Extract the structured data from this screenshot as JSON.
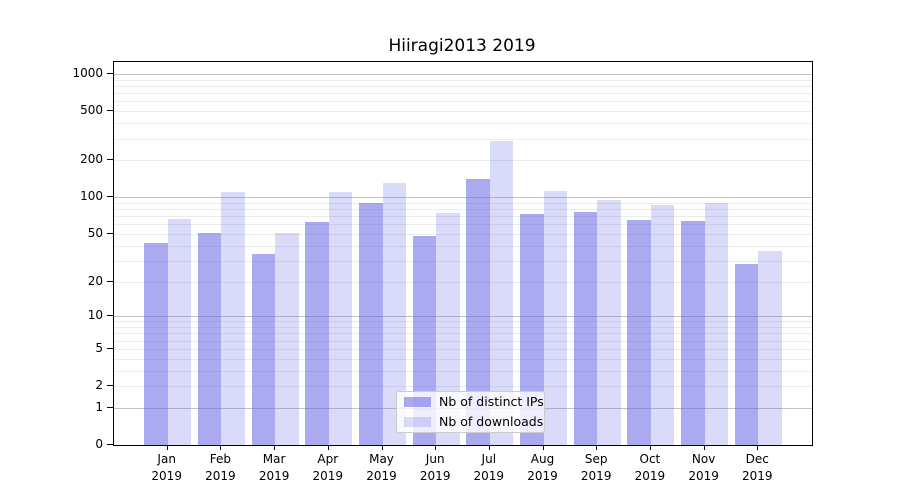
{
  "title": "Hiiragi2013 2019",
  "legend": {
    "items": [
      {
        "label": "Nb of distinct IPs",
        "color": "rgba(100,100,230,0.55)"
      },
      {
        "label": "Nb of downloads",
        "color": "rgba(100,100,230,0.24)"
      }
    ]
  },
  "chart_data": {
    "type": "bar",
    "title": "Hiiragi2013 2019",
    "categories": [
      "Jan 2019",
      "Feb 2019",
      "Mar 2019",
      "Apr 2019",
      "May 2019",
      "Jun 2019",
      "Jul 2019",
      "Aug 2019",
      "Sep 2019",
      "Oct 2019",
      "Nov 2019",
      "Dec 2019"
    ],
    "series": [
      {
        "name": "Nb of distinct IPs",
        "values": [
          42,
          51,
          34,
          63,
          90,
          48,
          140,
          73,
          76,
          65,
          64,
          28
        ]
      },
      {
        "name": "Nb of downloads",
        "values": [
          66,
          110,
          51,
          110,
          130,
          74,
          285,
          113,
          94,
          86,
          90,
          36
        ]
      }
    ],
    "xlabel": "",
    "ylabel": "",
    "y_scale": "log(value+1)",
    "y_ticks": [
      0,
      1,
      2,
      5,
      10,
      20,
      50,
      100,
      200,
      500,
      1000
    ],
    "y_major_gridlines": [
      1,
      10,
      100,
      1000
    ],
    "y_minor_gridline_decades": [
      1,
      10,
      100
    ],
    "ylim": [
      0,
      1250
    ],
    "grid": true,
    "legend_position": "lower center inside",
    "colors": {
      "distinct_ips_bar": "rgba(100,100,230,0.55)",
      "downloads_bar": "rgba(100,100,230,0.24)",
      "major_grid": "#c3c3c3",
      "minor_grid": "#ececec",
      "axis": "#000000"
    }
  }
}
